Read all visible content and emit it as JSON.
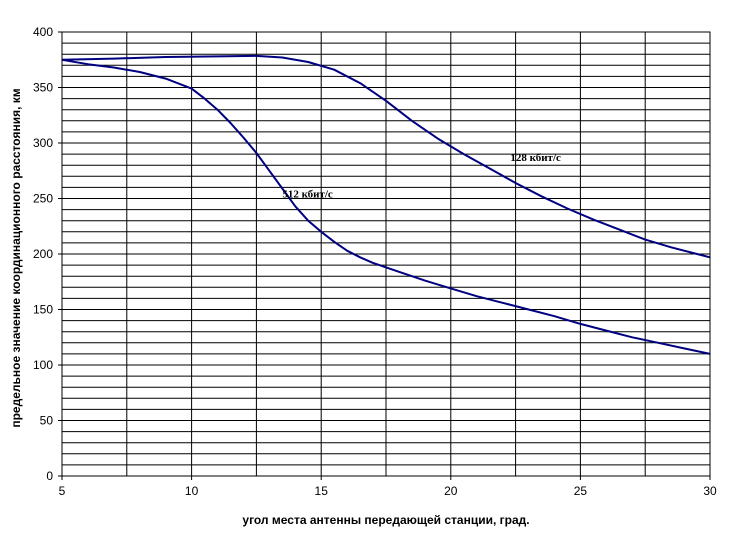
{
  "chart_data": {
    "type": "line",
    "title": "",
    "xlabel": "угол места антенны передающей станции, град.",
    "ylabel": "предельное значение координационного расстояния, км",
    "xlim": [
      5,
      30
    ],
    "ylim": [
      0,
      400
    ],
    "x_ticks": [
      5,
      10,
      15,
      20,
      25,
      30
    ],
    "y_ticks": [
      0,
      50,
      100,
      150,
      200,
      250,
      300,
      350,
      400
    ],
    "horizontal_grid_step": 10,
    "vertical_grid": [
      5,
      7.5,
      10,
      12.5,
      15,
      17.5,
      20,
      22.5,
      25,
      27.5,
      30
    ],
    "grid": true,
    "line_color": "#000080",
    "series": [
      {
        "name": "128 кбит/с",
        "label_at": [
          22.3,
          284
        ],
        "points": [
          [
            5,
            375
          ],
          [
            7,
            376
          ],
          [
            9,
            377.5
          ],
          [
            11,
            378
          ],
          [
            12.5,
            378.5
          ],
          [
            13.5,
            377
          ],
          [
            14.5,
            373
          ],
          [
            15.5,
            366
          ],
          [
            16.5,
            354
          ],
          [
            17.5,
            338
          ],
          [
            18.5,
            320
          ],
          [
            19.5,
            304
          ],
          [
            20.5,
            290
          ],
          [
            21.5,
            277
          ],
          [
            22.5,
            264
          ],
          [
            23.5,
            252
          ],
          [
            24.5,
            241
          ],
          [
            25.5,
            231
          ],
          [
            26.5,
            222
          ],
          [
            27.5,
            213
          ],
          [
            28.5,
            206
          ],
          [
            29.5,
            200
          ],
          [
            30,
            197
          ]
        ]
      },
      {
        "name": "512 кбит/с",
        "label_at": [
          13.5,
          251
        ],
        "points": [
          [
            5,
            375
          ],
          [
            6,
            371
          ],
          [
            7,
            368
          ],
          [
            8,
            364
          ],
          [
            9,
            358
          ],
          [
            10,
            349
          ],
          [
            10.5,
            340
          ],
          [
            11,
            330
          ],
          [
            11.5,
            318
          ],
          [
            12,
            305
          ],
          [
            12.5,
            291
          ],
          [
            13,
            275
          ],
          [
            13.5,
            259
          ],
          [
            14,
            243
          ],
          [
            14.5,
            230
          ],
          [
            15,
            220
          ],
          [
            15.5,
            211
          ],
          [
            16,
            203
          ],
          [
            16.5,
            197
          ],
          [
            17,
            192
          ],
          [
            18,
            184
          ],
          [
            19,
            176
          ],
          [
            20,
            169
          ],
          [
            21,
            162
          ],
          [
            22,
            156
          ],
          [
            23,
            150
          ],
          [
            24,
            144
          ],
          [
            25,
            137
          ],
          [
            26,
            131
          ],
          [
            27,
            125
          ],
          [
            28,
            120
          ],
          [
            29,
            115
          ],
          [
            30,
            110
          ]
        ]
      }
    ]
  }
}
